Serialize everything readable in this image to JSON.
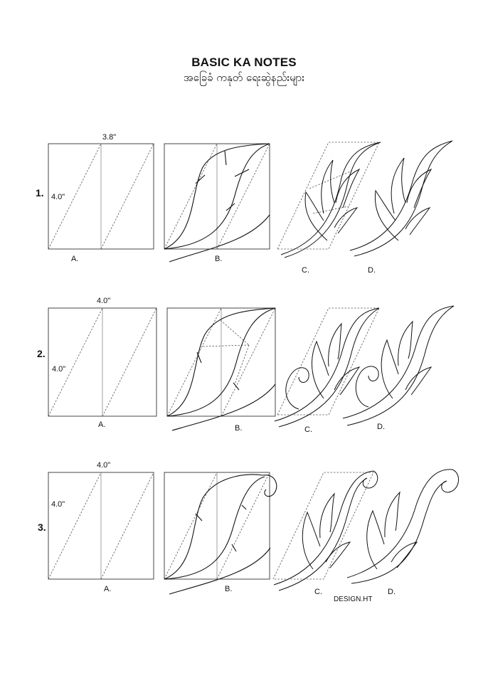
{
  "title": "BASIC KA NOTES",
  "subtitle": "အခြေခံ ကနုတ် ရေးဆွဲနည်းများ",
  "rows": [
    {
      "number": "1.",
      "width": "3.8\"",
      "height": "4.0\"",
      "steps": [
        "A.",
        "B.",
        "C.",
        "D."
      ]
    },
    {
      "number": "2.",
      "width": "4.0\"",
      "height": "4.0\"",
      "steps": [
        "A.",
        "B.",
        "C.",
        "D."
      ]
    },
    {
      "number": "3.",
      "width": "4.0\"",
      "height": "4.0\"",
      "steps": [
        "A.",
        "B.",
        "C.",
        "D."
      ]
    }
  ],
  "credit": "DESIGN.HT"
}
